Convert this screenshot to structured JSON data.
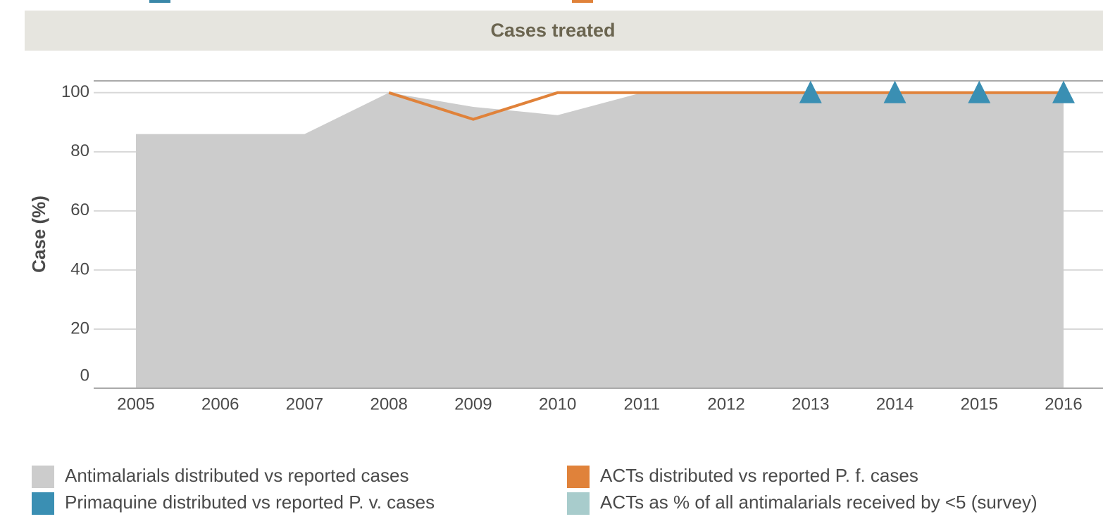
{
  "chart_data": {
    "type": "line",
    "title": "Cases treated",
    "ylabel": "Case (%)",
    "categories": [
      "2005",
      "2006",
      "2007",
      "2008",
      "2009",
      "2010",
      "2011",
      "2012",
      "2013",
      "2014",
      "2015",
      "2016"
    ],
    "ylim": [
      0,
      104
    ],
    "yticks": [
      0,
      20,
      40,
      60,
      80,
      100
    ],
    "grid": true,
    "series": [
      {
        "name": "Antimalarials distributed vs reported cases",
        "type": "area",
        "color": "#cccccc",
        "values": [
          86,
          86,
          86,
          100,
          95.2,
          92.4,
          100,
          100,
          100,
          100,
          100,
          100
        ]
      },
      {
        "name": "ACTs distributed vs reported P. f. cases",
        "type": "line",
        "color": "#e0823a",
        "values": [
          null,
          null,
          null,
          100,
          91,
          100,
          100,
          100,
          100,
          100,
          100,
          100
        ]
      },
      {
        "name": "Primaquine distributed vs reported P. v. cases",
        "type": "scatter",
        "marker": "triangle",
        "color": "#3a8fb3",
        "values": [
          null,
          null,
          null,
          null,
          null,
          null,
          null,
          null,
          100,
          100,
          100,
          100
        ]
      },
      {
        "name": "ACTs as % of all antimalarials received by <5 (survey)",
        "type": "scatter",
        "marker": "triangle",
        "color": "#a8cccc",
        "values": [
          null,
          null,
          null,
          null,
          null,
          null,
          null,
          null,
          null,
          null,
          null,
          null
        ]
      }
    ]
  }
}
